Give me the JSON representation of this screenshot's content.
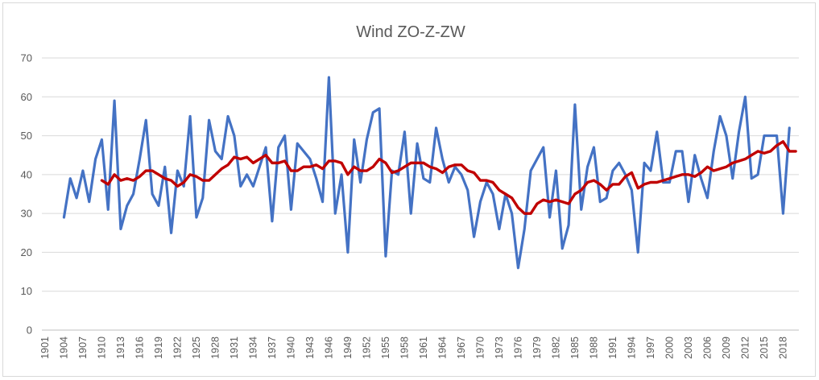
{
  "chart_data": {
    "type": "line",
    "title": "Wind ZO-Z-ZW",
    "xlabel": "",
    "ylabel": "",
    "ylim": [
      0,
      70
    ],
    "yticks": [
      0,
      10,
      20,
      30,
      40,
      50,
      60,
      70
    ],
    "x_start": 1901,
    "x_end": 2020,
    "xticks": [
      1901,
      1904,
      1907,
      1910,
      1913,
      1916,
      1919,
      1922,
      1925,
      1928,
      1931,
      1934,
      1937,
      1940,
      1943,
      1946,
      1949,
      1952,
      1955,
      1958,
      1961,
      1964,
      1967,
      1970,
      1973,
      1976,
      1979,
      1982,
      1985,
      1988,
      1991,
      1994,
      1997,
      2000,
      2003,
      2006,
      2009,
      2012,
      2015,
      2018
    ],
    "grid": true,
    "legend": "none",
    "series": [
      {
        "color": "#4472c4",
        "x_start": 1904,
        "values": [
          29,
          39,
          34,
          41,
          33,
          44,
          49,
          31,
          59,
          26,
          32,
          35,
          44,
          54,
          35,
          32,
          42,
          25,
          41,
          37,
          55,
          29,
          34,
          54,
          46,
          44,
          55,
          50,
          37,
          40,
          37,
          42,
          47,
          28,
          47,
          50,
          31,
          48,
          46,
          44,
          39,
          33,
          65,
          30,
          40,
          20,
          49,
          38,
          49,
          56,
          57,
          19,
          41,
          40,
          51,
          30,
          48,
          39,
          38,
          52,
          44,
          38,
          42,
          40,
          36,
          24,
          33,
          38,
          35,
          26,
          35,
          30,
          16,
          26,
          41,
          44,
          47,
          29,
          41,
          21,
          27,
          58,
          31,
          42,
          47,
          33,
          34,
          41,
          43,
          40,
          36,
          20,
          43,
          41,
          51,
          38,
          38,
          46,
          46,
          33,
          45,
          39,
          34,
          46,
          55,
          50,
          39,
          51,
          60,
          39,
          40,
          50,
          50,
          50,
          30,
          52
        ]
      },
      {
        "color": "#c00000",
        "x_start": 1910,
        "values": [
          38.5,
          37.5,
          40,
          38.5,
          39,
          38.5,
          39.5,
          41,
          41,
          40,
          39,
          38.5,
          37,
          38,
          40,
          39.5,
          38.5,
          38.5,
          40,
          41.5,
          42.5,
          44.5,
          44,
          44.5,
          43,
          44,
          45,
          43,
          43,
          43.5,
          41,
          41,
          42,
          42,
          42.5,
          41.5,
          43.5,
          43.5,
          43,
          40,
          42,
          41,
          41,
          42,
          44,
          43,
          40.5,
          41,
          42,
          43,
          43,
          43,
          42,
          41.5,
          40.5,
          42,
          42.5,
          42.5,
          41,
          40.5,
          38.5,
          38.5,
          38,
          36,
          35,
          34,
          31.5,
          30,
          30,
          32.5,
          33.5,
          33,
          33.5,
          33,
          32.5,
          35,
          36,
          38,
          38.5,
          37.5,
          36,
          37.5,
          37.5,
          39.5,
          40.5,
          36.5,
          37.5,
          38,
          38,
          38.5,
          39,
          39.5,
          40,
          40,
          39.5,
          40.5,
          42,
          41,
          41.5,
          42,
          43,
          43.5,
          44,
          45,
          46,
          45.5,
          46,
          47.5,
          48.5,
          46,
          46
        ]
      }
    ]
  }
}
